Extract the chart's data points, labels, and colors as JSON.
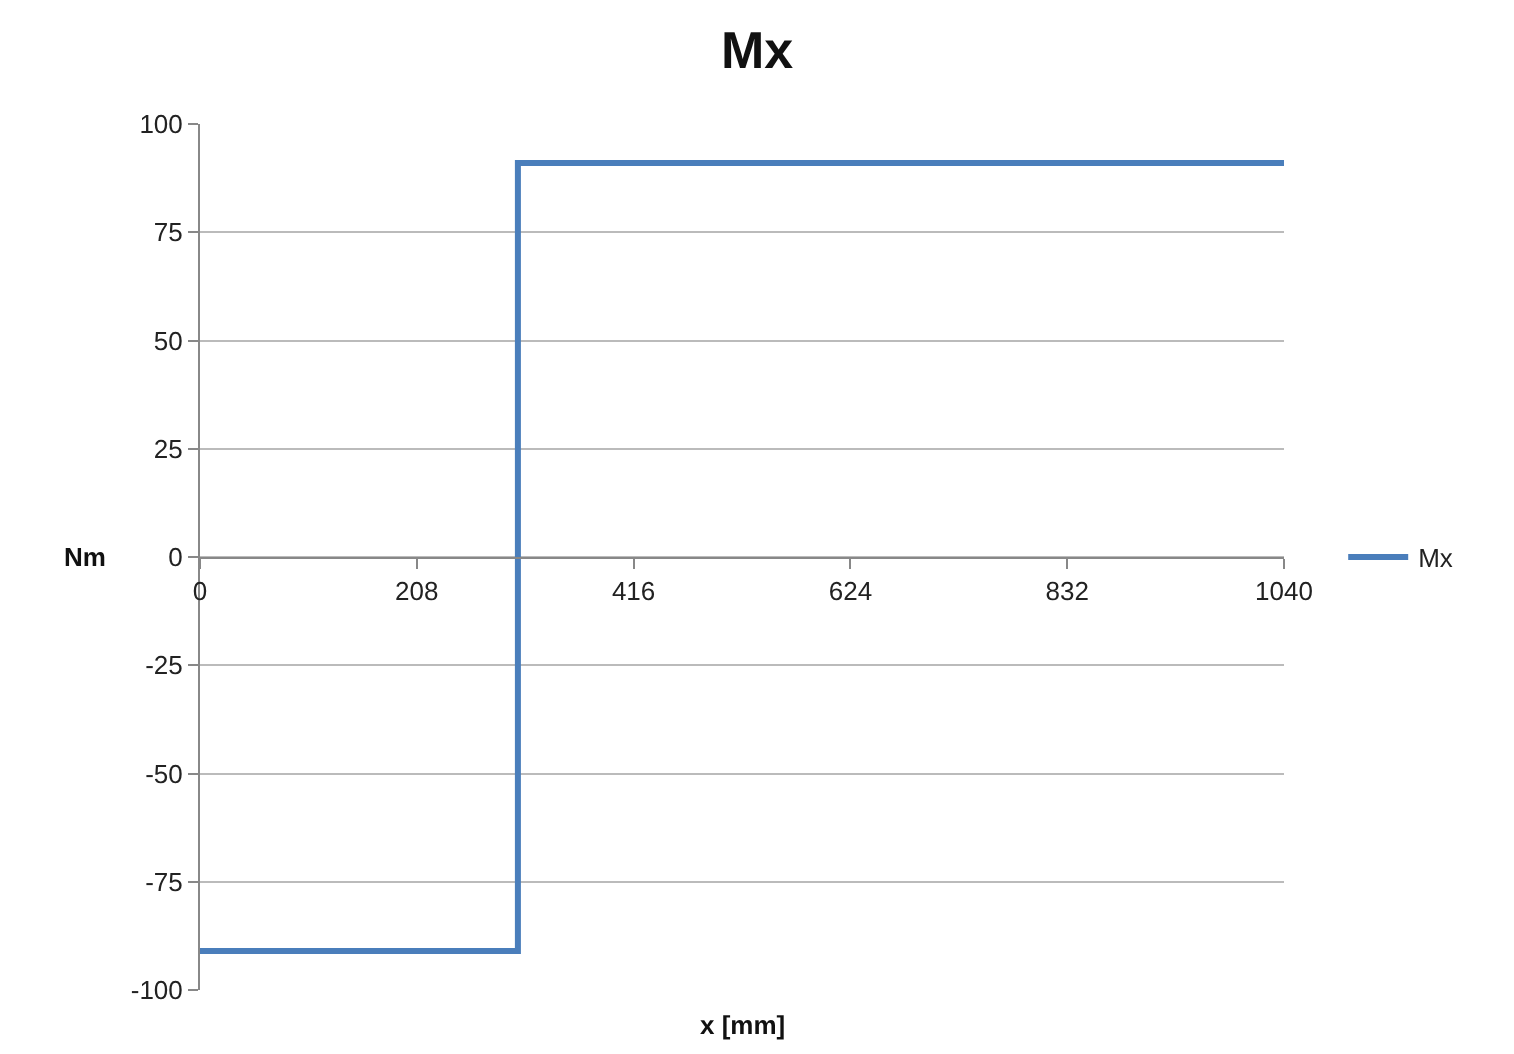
{
  "chart_data": {
    "type": "step",
    "title": "Mx",
    "xlabel": "x [mm]",
    "ylabel": "Nm",
    "series": [
      {
        "name": "Mx",
        "color": "#4a7ebb",
        "x": [
          0,
          305,
          1040
        ],
        "values": [
          -91,
          91,
          91
        ]
      }
    ],
    "xlim": [
      0,
      1040
    ],
    "xticks": [
      0,
      208,
      416,
      624,
      832,
      1040
    ],
    "ylim": [
      -100,
      100
    ],
    "yticks": [
      -100,
      -75,
      -50,
      -25,
      0,
      25,
      50,
      75,
      100
    ],
    "grid": "y",
    "legend": "right",
    "line_style": "solid",
    "marker": "none"
  }
}
